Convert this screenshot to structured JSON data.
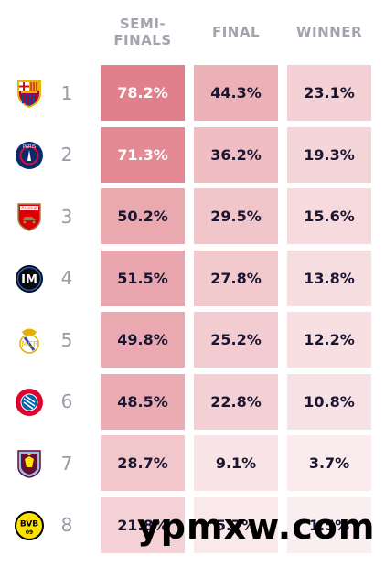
{
  "headers": {
    "semifinals": "SEMI-\nFINALS",
    "final": "FINAL",
    "winner": "WINNER"
  },
  "rows": [
    {
      "rank": "1",
      "club_icon": "barcelona-crest-icon",
      "semifinals": "78.2%",
      "final": "44.3%",
      "winner": "23.1%"
    },
    {
      "rank": "2",
      "club_icon": "psg-crest-icon",
      "semifinals": "71.3%",
      "final": "36.2%",
      "winner": "19.3%"
    },
    {
      "rank": "3",
      "club_icon": "arsenal-crest-icon",
      "semifinals": "50.2%",
      "final": "29.5%",
      "winner": "15.6%"
    },
    {
      "rank": "4",
      "club_icon": "inter-crest-icon",
      "semifinals": "51.5%",
      "final": "27.8%",
      "winner": "13.8%"
    },
    {
      "rank": "5",
      "club_icon": "real-madrid-crest-icon",
      "semifinals": "49.8%",
      "final": "25.2%",
      "winner": "12.2%"
    },
    {
      "rank": "6",
      "club_icon": "bayern-crest-icon",
      "semifinals": "48.5%",
      "final": "22.8%",
      "winner": "10.8%"
    },
    {
      "rank": "7",
      "club_icon": "aston-villa-crest-icon",
      "semifinals": "28.7%",
      "final": "9.1%",
      "winner": "3.7%"
    },
    {
      "rank": "8",
      "club_icon": "dortmund-crest-icon",
      "semifinals": "21.8%",
      "final": "5.7%",
      "winner": "1.5%"
    }
  ],
  "watermark": "ypmxw.com",
  "colors": {
    "header_text": "#a3a3ad",
    "cell_text_dark": "#1a1530",
    "cell_text_light": "#ffffff",
    "heat_max": "#e07d88",
    "heat_min": "#fbf1f2"
  }
}
